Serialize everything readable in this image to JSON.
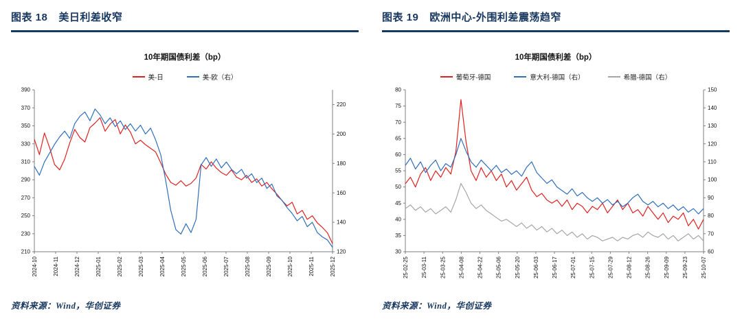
{
  "theme": {
    "navy": "#17375e",
    "axis_gray": "#7f7f7f",
    "red": "#e02020",
    "blue": "#2f6eba",
    "gray": "#a6a6a6"
  },
  "panels": [
    {
      "header": {
        "label": "图表 18",
        "title": "美日利差收窄"
      },
      "source": "资料来源：Wind，华创证券"
    },
    {
      "header": {
        "label": "图表 19",
        "title": "欧洲中心-外围利差震荡趋窄"
      },
      "source": "资料来源：Wind，华创证券"
    }
  ],
  "chart_data": [
    {
      "type": "line",
      "title": "10年期国债利差（bp）",
      "x_tick_labels": [
        "2024-10",
        "2024-11",
        "2024-12",
        "2025-01",
        "2025-02",
        "2025-03",
        "2025-04",
        "2025-05",
        "2025-06",
        "2025-07",
        "2025-08",
        "2025-09",
        "2025-10",
        "2025-11",
        "2025-12"
      ],
      "left_axis": {
        "min": 210,
        "max": 390,
        "ticks": [
          210,
          230,
          250,
          270,
          290,
          310,
          330,
          350,
          370,
          390
        ]
      },
      "right_axis": {
        "min": 120,
        "max": 230,
        "ticks": [
          120,
          140,
          160,
          180,
          200,
          220
        ]
      },
      "series": [
        {
          "name": "美-日",
          "axis": "left",
          "color": "#e02020",
          "values": [
            335,
            318,
            342,
            326,
            307,
            301,
            313,
            331,
            346,
            337,
            332,
            348,
            353,
            359,
            344,
            352,
            357,
            341,
            351,
            343,
            330,
            334,
            329,
            325,
            321,
            309,
            296,
            287,
            284,
            289,
            283,
            286,
            292,
            307,
            302,
            310,
            303,
            298,
            295,
            301,
            293,
            290,
            295,
            287,
            291,
            283,
            287,
            280,
            274,
            267,
            261,
            265,
            252,
            256,
            246,
            250,
            242,
            237,
            231,
            219
          ]
        },
        {
          "name": "美-欧（右）",
          "axis": "right",
          "color": "#2f6eba",
          "values": [
            178,
            172,
            181,
            187,
            193,
            198,
            202,
            197,
            207,
            212,
            215,
            209,
            217,
            213,
            207,
            211,
            205,
            209,
            203,
            207,
            202,
            206,
            200,
            204,
            196,
            186,
            168,
            148,
            135,
            132,
            139,
            133,
            142,
            179,
            184,
            178,
            183,
            177,
            181,
            176,
            173,
            176,
            170,
            173,
            167,
            170,
            163,
            166,
            158,
            155,
            150,
            146,
            141,
            144,
            137,
            140,
            133,
            130,
            128,
            123
          ]
        }
      ]
    },
    {
      "type": "line",
      "title": "10年期国债利差（bp）",
      "x_tick_labels": [
        "25-02-25",
        "25-03-11",
        "25-03-25",
        "25-04-08",
        "25-04-22",
        "25-05-06",
        "25-05-20",
        "25-06-03",
        "25-06-17",
        "25-07-01",
        "25-07-15",
        "25-07-29",
        "25-08-12",
        "25-08-26",
        "25-09-09",
        "25-09-23",
        "25-10-07"
      ],
      "left_axis": {
        "min": 30,
        "max": 80,
        "ticks": [
          30,
          35,
          40,
          45,
          50,
          55,
          60,
          65,
          70,
          75,
          80
        ]
      },
      "right_axis": {
        "min": 60,
        "max": 150,
        "ticks": [
          60,
          70,
          80,
          90,
          100,
          110,
          120,
          130,
          140,
          150
        ]
      },
      "series": [
        {
          "name": "葡萄牙-德国",
          "axis": "left",
          "color": "#e02020",
          "values": [
            51,
            53,
            50,
            54,
            56,
            52,
            55,
            53,
            56,
            54,
            61,
            77,
            64,
            55,
            52,
            56,
            53,
            55,
            52,
            54,
            50,
            52,
            49,
            51,
            53,
            49,
            47,
            48,
            46,
            45,
            46,
            44,
            46,
            43,
            45,
            44,
            42,
            44,
            43,
            45,
            42,
            44,
            46,
            43,
            45,
            42,
            43,
            41,
            44,
            42,
            40,
            42,
            39,
            41,
            40,
            42,
            38,
            40,
            37,
            40
          ]
        },
        {
          "name": "意大利-德国（右）",
          "axis": "right",
          "color": "#2f6eba",
          "values": [
            108,
            112,
            106,
            110,
            104,
            108,
            111,
            105,
            109,
            107,
            114,
            123,
            116,
            110,
            107,
            111,
            108,
            105,
            108,
            104,
            106,
            103,
            105,
            102,
            107,
            110,
            104,
            101,
            98,
            100,
            96,
            94,
            92,
            95,
            91,
            93,
            90,
            88,
            90,
            87,
            89,
            86,
            88,
            85,
            87,
            90,
            92,
            88,
            86,
            88,
            85,
            87,
            84,
            86,
            83,
            85,
            82,
            84,
            81,
            84
          ]
        },
        {
          "name": "希腊-德国（右）",
          "axis": "right",
          "color": "#a6a6a6",
          "values": [
            84,
            86,
            83,
            85,
            82,
            84,
            81,
            83,
            85,
            82,
            89,
            98,
            93,
            87,
            84,
            86,
            83,
            81,
            79,
            77,
            78,
            76,
            74,
            76,
            73,
            75,
            72,
            74,
            71,
            73,
            70,
            72,
            69,
            71,
            68,
            70,
            67,
            69,
            68,
            66,
            67,
            68,
            66,
            68,
            67,
            69,
            70,
            68,
            71,
            69,
            68,
            70,
            67,
            69,
            66,
            68,
            70,
            67,
            69,
            66
          ]
        }
      ]
    }
  ]
}
